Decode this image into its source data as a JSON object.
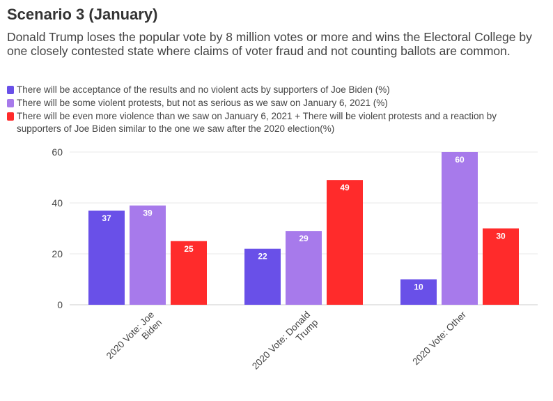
{
  "chart_data": {
    "type": "bar",
    "title": "Scenario 3 (January)",
    "subtitle": "Donald Trump loses the popular vote by 8 million votes or more and wins the Electoral College by one closely contested state where claims of voter fraud and not counting ballots are common.",
    "categories": [
      [
        "2020 Vote: Joe",
        "Biden"
      ],
      [
        "2020 Vote: Donald",
        "Trump"
      ],
      [
        "2020 Vote: Other"
      ]
    ],
    "series": [
      {
        "name": "There will be acceptance of the results and no violent acts by supporters of Joe Biden (%)",
        "color": "#6950e8",
        "values": [
          37,
          22,
          10
        ]
      },
      {
        "name": "There will be some violent protests, but not as serious as we saw on January 6, 2021 (%)",
        "color": "#a77aeb",
        "values": [
          39,
          29,
          60
        ]
      },
      {
        "name": "There will be even more violence than we saw on January 6, 2021 + There will be violent protests and a reaction by supporters of Joe Biden similar to the one we saw after the 2020 election(%)",
        "color": "#ff2b2b",
        "values": [
          25,
          49,
          30
        ]
      }
    ],
    "ylim": [
      0,
      60
    ],
    "yticks": [
      0,
      20,
      40,
      60
    ],
    "grid": true,
    "legend_placement": "top-left"
  }
}
